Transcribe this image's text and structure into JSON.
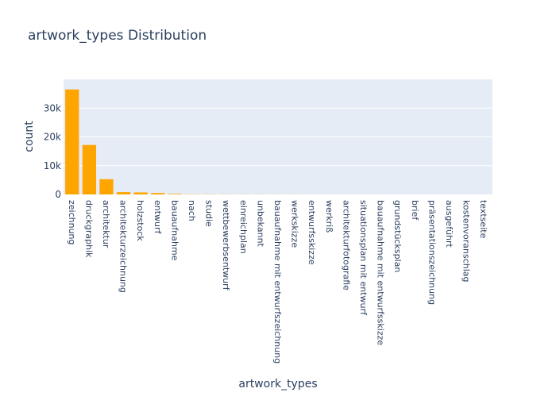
{
  "chart_data": {
    "type": "bar",
    "title": "artwork_types Distribution",
    "xlabel": "artwork_types",
    "ylabel": "count",
    "ylim": [
      0,
      40000
    ],
    "yticks": [
      0,
      10000,
      20000,
      30000
    ],
    "ytick_labels": [
      "0",
      "10k",
      "20k",
      "30k"
    ],
    "grid": true,
    "legend": "none",
    "bar_color": "#FFA500",
    "plot_bg": "#E5ECF6",
    "categories": [
      "zeichnung",
      "druckgraphik",
      "architektur",
      "architekturzeichnung",
      "holzstock",
      "entwurf",
      "bauaufnahme",
      "nach",
      "studie",
      "wettbewerbsentwurf",
      "einreichplan",
      "unbekannt",
      "bauaufnahme mit entwurfszeichnung",
      "werkskizze",
      "entwurfsskizze",
      "werkriß",
      "architekturfotografie",
      "situationsplan mit entwurf",
      "bauaufnahme mit entwurfsskizze",
      "grundstücksplan",
      "brief",
      "präsentationszeichnung",
      "ausgeführt",
      "kostenvoranschlag",
      "textseite"
    ],
    "values": [
      36500,
      17200,
      5300,
      800,
      700,
      500,
      200,
      80,
      60,
      50,
      40,
      30,
      25,
      20,
      18,
      15,
      12,
      10,
      8,
      6,
      5,
      4,
      3,
      2,
      1
    ]
  }
}
